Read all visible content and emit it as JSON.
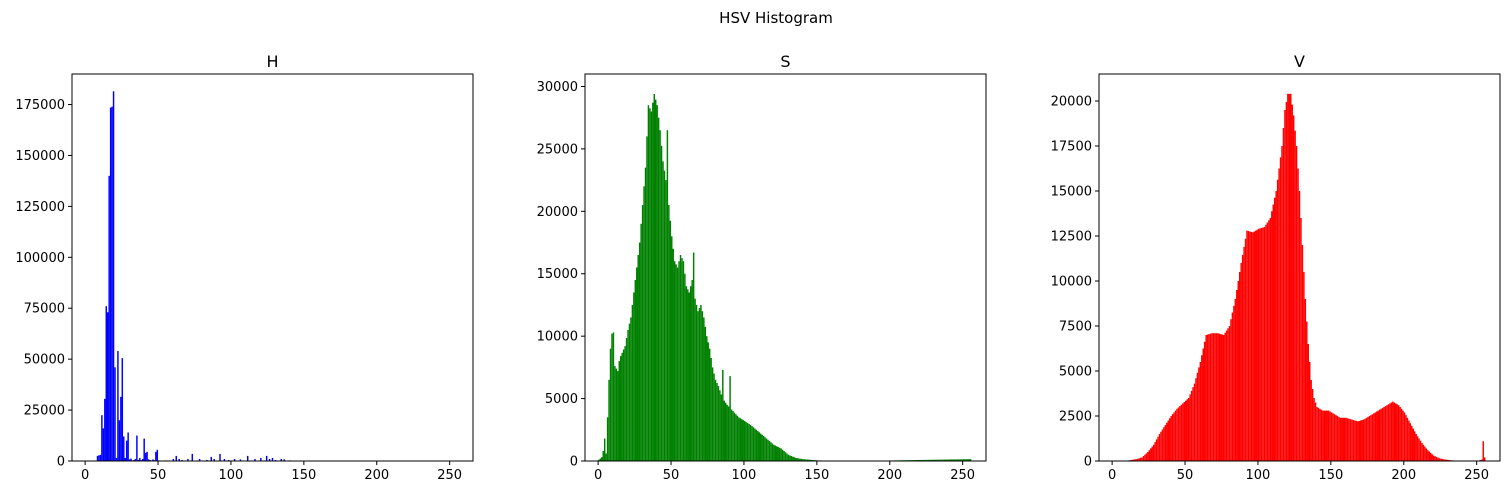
{
  "chart_data": {
    "suptitle": "HSV Histogram",
    "charts": [
      {
        "type": "bar",
        "title": "H",
        "color": "#0000ff",
        "xlim": [
          -9,
          266
        ],
        "ylim": [
          0,
          190000
        ],
        "xticks": [
          0,
          50,
          100,
          150,
          200,
          250
        ],
        "yticks": [
          0,
          25000,
          50000,
          75000,
          100000,
          125000,
          150000,
          175000
        ],
        "bins": [
          [
            8,
            2500
          ],
          [
            9,
            2800
          ],
          [
            10,
            3000
          ],
          [
            11,
            22500
          ],
          [
            12,
            16000
          ],
          [
            13,
            30500
          ],
          [
            14,
            76000
          ],
          [
            15,
            73000
          ],
          [
            16,
            140000
          ],
          [
            17,
            173500
          ],
          [
            18,
            174000
          ],
          [
            19,
            181500
          ],
          [
            20,
            46000
          ],
          [
            21,
            1500
          ],
          [
            22,
            54000
          ],
          [
            23,
            20000
          ],
          [
            24,
            31500
          ],
          [
            25,
            50500
          ],
          [
            26,
            12000
          ],
          [
            27,
            1500
          ],
          [
            28,
            10000
          ],
          [
            29,
            14000
          ],
          [
            30,
            800
          ],
          [
            31,
            1200
          ],
          [
            32,
            300
          ],
          [
            33,
            500
          ],
          [
            34,
            1000
          ],
          [
            35,
            12500
          ],
          [
            36,
            500
          ],
          [
            37,
            1500
          ],
          [
            38,
            400
          ],
          [
            39,
            1000
          ],
          [
            40,
            11000
          ],
          [
            41,
            4000
          ],
          [
            42,
            4500
          ],
          [
            43,
            800
          ],
          [
            44,
            500
          ],
          [
            45,
            300
          ],
          [
            46,
            800
          ],
          [
            47,
            400
          ],
          [
            48,
            4500
          ],
          [
            49,
            5500
          ],
          [
            50,
            300
          ],
          [
            55,
            300
          ],
          [
            60,
            1000
          ],
          [
            62,
            2500
          ],
          [
            64,
            1000
          ],
          [
            66,
            500
          ],
          [
            70,
            1000
          ],
          [
            73,
            3500
          ],
          [
            78,
            1000
          ],
          [
            83,
            500
          ],
          [
            86,
            2000
          ],
          [
            88,
            1000
          ],
          [
            92,
            3500
          ],
          [
            95,
            1000
          ],
          [
            98,
            500
          ],
          [
            102,
            1000
          ],
          [
            106,
            800
          ],
          [
            111,
            2500
          ],
          [
            116,
            1000
          ],
          [
            120,
            1500
          ],
          [
            124,
            2500
          ],
          [
            126,
            1000
          ],
          [
            128,
            1500
          ],
          [
            130,
            500
          ],
          [
            134,
            1000
          ],
          [
            136,
            800
          ],
          [
            140,
            300
          ],
          [
            150,
            200
          ],
          [
            180,
            100
          ],
          [
            254,
            200
          ]
        ]
      },
      {
        "type": "bar",
        "title": "S",
        "color": "#008000",
        "xlim": [
          -9,
          266
        ],
        "ylim": [
          0,
          31000
        ],
        "xticks": [
          0,
          50,
          100,
          150,
          200,
          250
        ],
        "yticks": [
          0,
          5000,
          10000,
          15000,
          20000,
          25000,
          30000
        ],
        "keypoints": [
          [
            0,
            100
          ],
          [
            2,
            300
          ],
          [
            3,
            800
          ],
          [
            4,
            1800
          ],
          [
            5,
            600
          ],
          [
            6,
            3500
          ],
          [
            7,
            6500
          ],
          [
            8,
            9000
          ],
          [
            9,
            10200
          ],
          [
            10,
            10300
          ],
          [
            11,
            7600
          ],
          [
            12,
            7400
          ],
          [
            13,
            7200
          ],
          [
            14,
            8000
          ],
          [
            15,
            8400
          ],
          [
            18,
            9200
          ],
          [
            20,
            10500
          ],
          [
            22,
            11500
          ],
          [
            24,
            13500
          ],
          [
            26,
            15500
          ],
          [
            28,
            17500
          ],
          [
            30,
            20500
          ],
          [
            32,
            23500
          ],
          [
            34,
            28500
          ],
          [
            36,
            28000
          ],
          [
            38,
            29400
          ],
          [
            40,
            28500
          ],
          [
            42,
            26500
          ],
          [
            44,
            24000
          ],
          [
            46,
            22500
          ],
          [
            48,
            20500
          ],
          [
            50,
            18000
          ],
          [
            52,
            16000
          ],
          [
            54,
            15500
          ],
          [
            56,
            16500
          ],
          [
            58,
            16000
          ],
          [
            60,
            14000
          ],
          [
            62,
            13500
          ],
          [
            64,
            14500
          ],
          [
            66,
            13000
          ],
          [
            68,
            12000
          ],
          [
            70,
            12500
          ],
          [
            72,
            11500
          ],
          [
            74,
            10000
          ],
          [
            76,
            9000
          ],
          [
            78,
            7500
          ],
          [
            80,
            6500
          ],
          [
            82,
            6000
          ],
          [
            85,
            5000
          ],
          [
            88,
            4500
          ],
          [
            92,
            4000
          ],
          [
            96,
            3500
          ],
          [
            100,
            3200
          ],
          [
            105,
            2800
          ],
          [
            110,
            2300
          ],
          [
            115,
            1800
          ],
          [
            120,
            1300
          ],
          [
            125,
            1000
          ],
          [
            130,
            500
          ],
          [
            135,
            250
          ],
          [
            140,
            150
          ],
          [
            145,
            100
          ],
          [
            150,
            50
          ],
          [
            160,
            20
          ],
          [
            180,
            5
          ],
          [
            255,
            150
          ]
        ],
        "spikes": [
          [
            10,
            10300
          ],
          [
            47,
            26500
          ],
          [
            65,
            16700
          ],
          [
            85,
            7300
          ],
          [
            90,
            6800
          ]
        ]
      },
      {
        "type": "bar",
        "title": "V",
        "color": "#ff0000",
        "xlim": [
          -9,
          266
        ],
        "ylim": [
          0,
          21500
        ],
        "xticks": [
          0,
          50,
          100,
          150,
          200,
          250
        ],
        "yticks": [
          0,
          2500,
          5000,
          7500,
          10000,
          12500,
          15000,
          17500,
          20000
        ],
        "keypoints": [
          [
            0,
            0
          ],
          [
            8,
            0
          ],
          [
            12,
            50
          ],
          [
            16,
            100
          ],
          [
            20,
            200
          ],
          [
            24,
            500
          ],
          [
            28,
            900
          ],
          [
            32,
            1500
          ],
          [
            36,
            2000
          ],
          [
            40,
            2500
          ],
          [
            44,
            2900
          ],
          [
            48,
            3200
          ],
          [
            52,
            3500
          ],
          [
            56,
            4300
          ],
          [
            60,
            5500
          ],
          [
            64,
            7000
          ],
          [
            68,
            7100
          ],
          [
            72,
            7100
          ],
          [
            76,
            7000
          ],
          [
            80,
            7500
          ],
          [
            84,
            9000
          ],
          [
            88,
            11000
          ],
          [
            92,
            12800
          ],
          [
            96,
            12700
          ],
          [
            100,
            12900
          ],
          [
            104,
            13000
          ],
          [
            108,
            13500
          ],
          [
            112,
            15000
          ],
          [
            116,
            17500
          ],
          [
            118,
            19500
          ],
          [
            120,
            20400
          ],
          [
            122,
            20400
          ],
          [
            124,
            19200
          ],
          [
            126,
            17500
          ],
          [
            128,
            15000
          ],
          [
            130,
            12000
          ],
          [
            132,
            9000
          ],
          [
            134,
            6500
          ],
          [
            136,
            4500
          ],
          [
            138,
            3500
          ],
          [
            140,
            3000
          ],
          [
            144,
            2800
          ],
          [
            148,
            2800
          ],
          [
            152,
            2600
          ],
          [
            156,
            2400
          ],
          [
            160,
            2400
          ],
          [
            164,
            2300
          ],
          [
            168,
            2200
          ],
          [
            172,
            2300
          ],
          [
            176,
            2500
          ],
          [
            180,
            2700
          ],
          [
            184,
            2900
          ],
          [
            188,
            3100
          ],
          [
            192,
            3300
          ],
          [
            196,
            3100
          ],
          [
            200,
            2700
          ],
          [
            204,
            2100
          ],
          [
            208,
            1500
          ],
          [
            212,
            1000
          ],
          [
            216,
            600
          ],
          [
            220,
            300
          ],
          [
            224,
            150
          ],
          [
            228,
            80
          ],
          [
            232,
            40
          ],
          [
            236,
            20
          ],
          [
            240,
            10
          ],
          [
            250,
            0
          ],
          [
            253,
            80
          ],
          [
            254,
            1100
          ],
          [
            255,
            200
          ]
        ]
      }
    ]
  }
}
